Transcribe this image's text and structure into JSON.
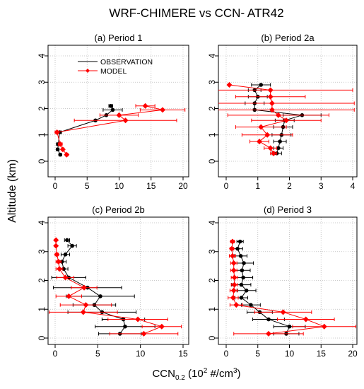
{
  "figure": {
    "title": "WRF-CHIMERE vs CCN- ATR42",
    "ylabel": "Altitude (km)",
    "xlabel_main": "CCN",
    "xlabel_sub": "0.2",
    "xlabel_units": " (10",
    "xlabel_exp": "2",
    "xlabel_tail": " #/cm",
    "xlabel_exp2": "3",
    "xlabel_close": ")"
  },
  "colors": {
    "observation": "#000000",
    "model": "#ff0000",
    "axis": "#000000",
    "grid": "#bbbbbb"
  },
  "legend": {
    "observation": "OBSERVATION",
    "model": "MODEL"
  },
  "chart_data": [
    {
      "type": "line",
      "title": "(a)   Period 1",
      "xlim": [
        0,
        20
      ],
      "ylim": [
        0,
        4
      ],
      "xticks": [
        0,
        5,
        10,
        15,
        20
      ],
      "yticks": [
        0,
        1,
        2,
        3,
        4
      ],
      "grid": true,
      "legend": "top-left",
      "series": [
        {
          "name": "OBSERVATION",
          "x": [
            0.8,
            0.4,
            0.5,
            0.7,
            6.3,
            8.0,
            9.0,
            8.7
          ],
          "y": [
            0.25,
            0.45,
            0.65,
            1.1,
            1.55,
            1.75,
            1.95,
            2.1
          ],
          "xerr": [
            0.2,
            0.2,
            0.3,
            0.3,
            0,
            0,
            1.5,
            0.3
          ]
        },
        {
          "name": "MODEL",
          "x": [
            1.8,
            1.2,
            0.8,
            0.3,
            11.0,
            10.0,
            16.8,
            14.1
          ],
          "y": [
            0.25,
            0.45,
            0.65,
            1.1,
            1.55,
            1.75,
            1.95,
            2.1
          ],
          "xerr": [
            0.2,
            0.2,
            0.3,
            0.3,
            8.0,
            3.0,
            3.5,
            1.5
          ]
        }
      ]
    },
    {
      "type": "line",
      "title": "(b)   Period 2a",
      "xlim": [
        0,
        4
      ],
      "ylim": [
        0,
        4
      ],
      "xticks": [
        0,
        1,
        2,
        3,
        4
      ],
      "yticks": [
        0,
        1,
        2,
        3,
        4
      ],
      "grid": true,
      "series": [
        {
          "name": "OBSERVATION",
          "x": [
            1.6,
            1.65,
            1.7,
            1.75,
            1.8,
            1.85,
            2.4,
            0.9,
            0.9,
            1.0,
            0.9,
            1.1
          ],
          "y": [
            0.3,
            0.5,
            0.75,
            1.0,
            1.3,
            1.55,
            1.75,
            1.95,
            2.2,
            2.45,
            2.7,
            2.9
          ],
          "xerr": [
            0.15,
            0.15,
            0.2,
            0.3,
            0.3,
            0.3,
            0.6,
            0,
            0.3,
            0.3,
            0.2,
            0.3
          ]
        },
        {
          "name": "MODEL",
          "x": [
            1.5,
            1.4,
            1.05,
            1.3,
            1.1,
            1.9,
            1.65,
            1.45,
            1.45,
            1.4,
            1.4,
            0.1
          ],
          "y": [
            0.3,
            0.5,
            0.75,
            1.0,
            1.3,
            1.55,
            1.75,
            1.95,
            2.2,
            2.45,
            2.7,
            2.9
          ],
          "xerr": [
            0.1,
            0.2,
            0.3,
            0.8,
            0.8,
            1.1,
            1.6,
            2.6,
            2.6,
            1.1,
            2.6,
            0
          ]
        }
      ]
    },
    {
      "type": "line",
      "title": "(c)   Period 2b",
      "xlim": [
        0,
        15
      ],
      "ylim": [
        0,
        4
      ],
      "xticks": [
        0,
        5,
        10,
        15
      ],
      "yticks": [
        0,
        1,
        2,
        3,
        4
      ],
      "grid": true,
      "series": [
        {
          "name": "OBSERVATION",
          "x": [
            7.6,
            8.2,
            8.0,
            5.5,
            4.6,
            5.3,
            3.8,
            1.6,
            1.0,
            0.8,
            1.2,
            2.0,
            1.4
          ],
          "y": [
            0.15,
            0.4,
            0.65,
            0.9,
            1.15,
            1.45,
            1.75,
            2.1,
            2.4,
            2.65,
            2.9,
            3.2,
            3.4
          ],
          "xerr": [
            2.5,
            3.5,
            2.5,
            4.0,
            2.5,
            4.0,
            4.0,
            2.0,
            0.5,
            0.5,
            0.5,
            0.5,
            0.3
          ]
        },
        {
          "name": "MODEL",
          "x": [
            10.4,
            12.5,
            9.7,
            3.3,
            3.6,
            1.6,
            3.4,
            1.2,
            0.5,
            0.4,
            0.2,
            0.1,
            0.1
          ],
          "y": [
            0.15,
            0.4,
            0.65,
            0.9,
            1.15,
            1.45,
            1.75,
            2.1,
            2.4,
            2.65,
            2.9,
            3.2,
            3.4
          ],
          "xerr": [
            4.0,
            2.3,
            3.5,
            4.0,
            3.0,
            1.5,
            1.5,
            1.0,
            0.4,
            0.3,
            0.2,
            0.1,
            0.1
          ]
        }
      ]
    },
    {
      "type": "line",
      "title": "(d)   Period 3",
      "xlim": [
        0,
        20
      ],
      "ylim": [
        0,
        4
      ],
      "xticks": [
        0,
        5,
        10,
        15,
        20
      ],
      "yticks": [
        0,
        1,
        2,
        3,
        4
      ],
      "grid": true,
      "series": [
        {
          "name": "OBSERVATION",
          "x": [
            9.5,
            10.0,
            6.7,
            5.3,
            3.9,
            2.4,
            3.2,
            2.4,
            2.7,
            2.5,
            2.8,
            2.3,
            1.8,
            2.2
          ],
          "y": [
            0.15,
            0.4,
            0.65,
            0.9,
            1.15,
            1.4,
            1.65,
            1.85,
            2.1,
            2.35,
            2.6,
            2.85,
            3.1,
            3.35
          ],
          "xerr": [
            2.0,
            2.5,
            2.5,
            2.0,
            1.5,
            1.0,
            1.5,
            1.5,
            1.5,
            1.3,
            1.5,
            1.0,
            0.8,
            0.5
          ]
        },
        {
          "name": "MODEL",
          "x": [
            6.7,
            15.5,
            12.6,
            9.0,
            1.6,
            1.1,
            1.2,
            1.3,
            1.3,
            1.2,
            1.2,
            1.0,
            0.9,
            1.0
          ],
          "y": [
            0.15,
            0.4,
            0.65,
            0.9,
            1.15,
            1.4,
            1.65,
            1.85,
            2.1,
            2.35,
            2.6,
            2.85,
            3.1,
            3.35
          ],
          "xerr": [
            5.5,
            5.0,
            4.5,
            4.5,
            1.0,
            0.8,
            0.6,
            0.5,
            0.5,
            0.5,
            0.5,
            0.5,
            0.3,
            0.3
          ]
        }
      ]
    }
  ]
}
